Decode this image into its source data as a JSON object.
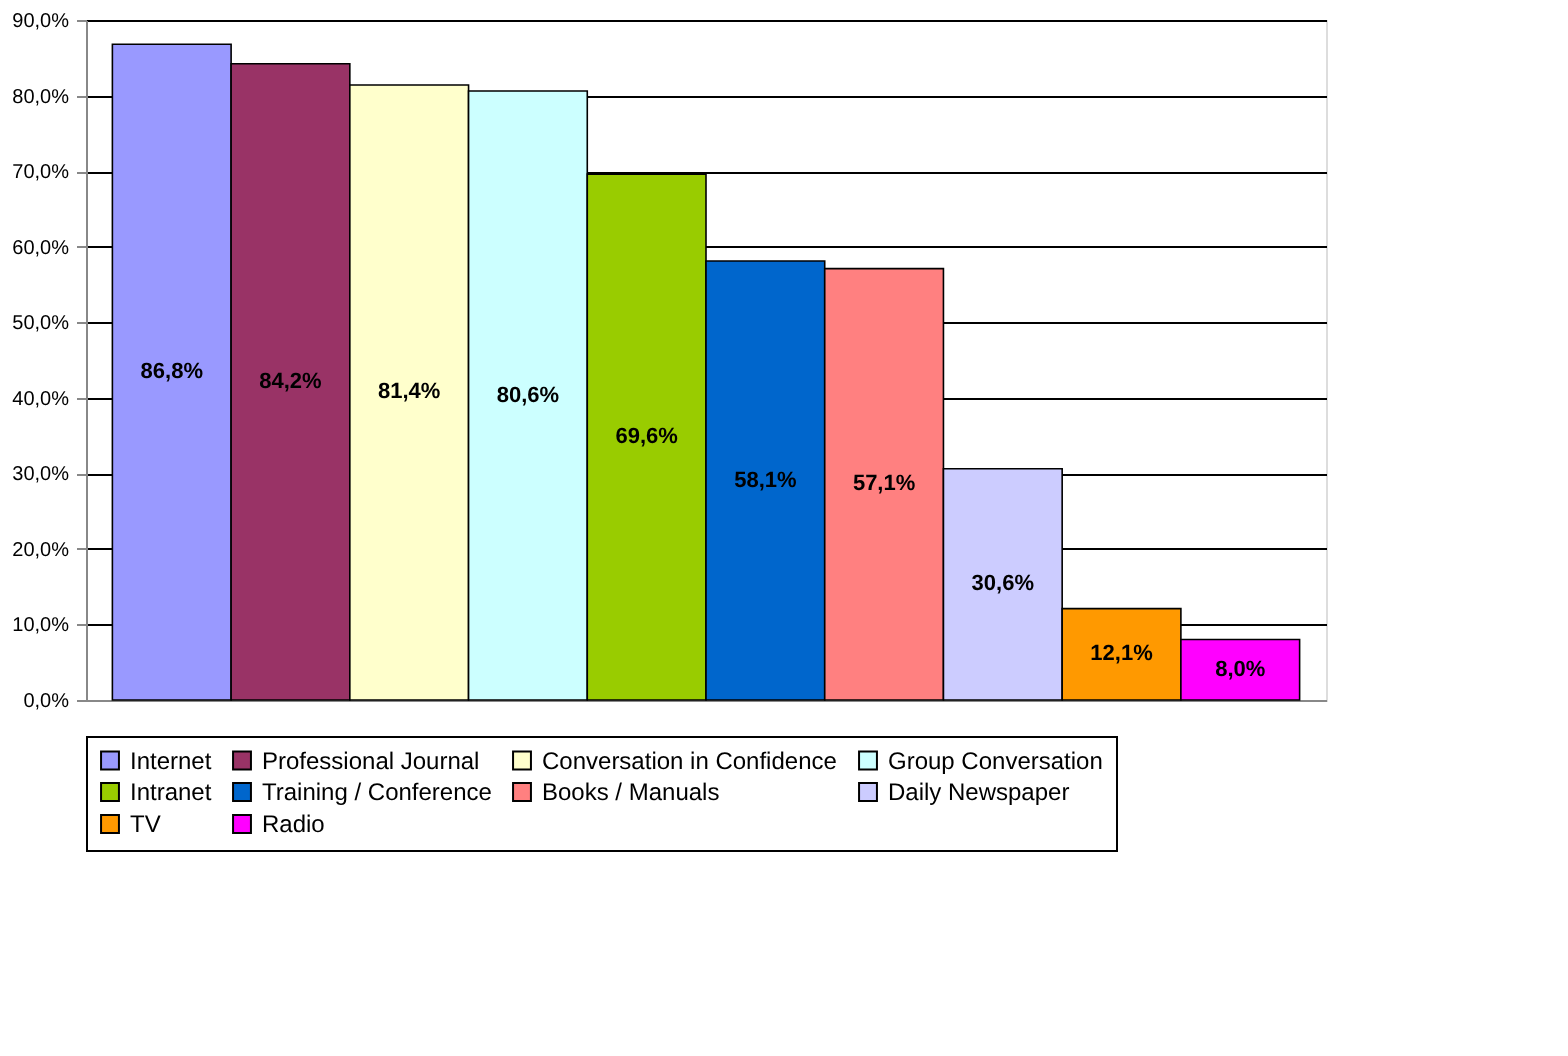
{
  "chart_data": {
    "type": "bar",
    "categories": [
      null
    ],
    "series": [
      {
        "name": "Internet",
        "color": "#9999ff",
        "values": [
          86.8
        ],
        "value_labels": [
          "86,8%"
        ]
      },
      {
        "name": "Professional Journal",
        "color": "#993366",
        "values": [
          84.2
        ],
        "value_labels": [
          "84,2%"
        ]
      },
      {
        "name": "Conversation in Confidence",
        "color": "#ffffcc",
        "values": [
          81.4
        ],
        "value_labels": [
          "81,4%"
        ]
      },
      {
        "name": "Group Conversation",
        "color": "#ccffff",
        "values": [
          80.6
        ],
        "value_labels": [
          "80,6%"
        ]
      },
      {
        "name": "Intranet",
        "color": "#99cc00",
        "values": [
          69.6
        ],
        "value_labels": [
          "69,6%"
        ]
      },
      {
        "name": "Training / Conference",
        "color": "#0066cc",
        "values": [
          58.1
        ],
        "value_labels": [
          "58,1%"
        ]
      },
      {
        "name": "Books / Manuals",
        "color": "#ff8080",
        "values": [
          57.1
        ],
        "value_labels": [
          "57,1%"
        ]
      },
      {
        "name": "Daily Newspaper",
        "color": "#ccccff",
        "values": [
          30.6
        ],
        "value_labels": [
          "30,6%"
        ]
      },
      {
        "name": "TV",
        "color": "#ff9900",
        "values": [
          12.1
        ],
        "value_labels": [
          "12,1%"
        ]
      },
      {
        "name": "Radio",
        "color": "#ff00ff",
        "values": [
          8.0
        ],
        "value_labels": [
          "8,0%"
        ]
      }
    ],
    "ylim": [
      0,
      90
    ],
    "yticks": [
      {
        "value": 0,
        "label": "0,0%"
      },
      {
        "value": 10,
        "label": "10,0%"
      },
      {
        "value": 20,
        "label": "20,0%"
      },
      {
        "value": 30,
        "label": "30,0%"
      },
      {
        "value": 40,
        "label": "40,0%"
      },
      {
        "value": 50,
        "label": "50,0%"
      },
      {
        "value": 60,
        "label": "60,0%"
      },
      {
        "value": 70,
        "label": "70,0%"
      },
      {
        "value": 80,
        "label": "80,0%"
      },
      {
        "value": 90,
        "label": "90,0%"
      }
    ],
    "grid": "y",
    "legend": "bottom"
  }
}
